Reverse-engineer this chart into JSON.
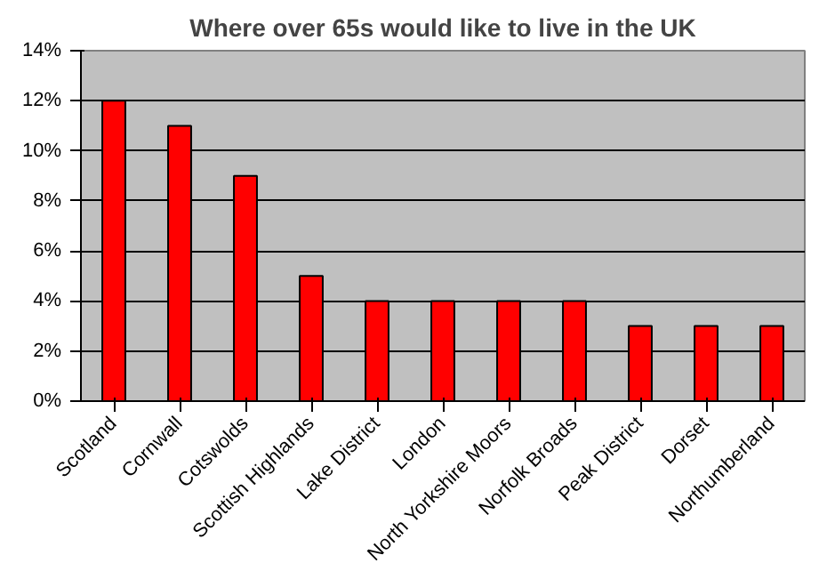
{
  "chart_data": {
    "type": "bar",
    "title": "Where over 65s would like to live in the UK",
    "categories": [
      "Scotland",
      "Cornwall",
      "Cotswolds",
      "Scottish Highlands",
      "Lake District",
      "London",
      "North Yorkshire Moors",
      "Norfolk Broads",
      "Peak District",
      "Dorset",
      "Northumberland"
    ],
    "values": [
      12,
      11,
      9,
      5,
      4,
      4,
      4,
      4,
      3,
      3,
      3
    ],
    "color": "#ff0000",
    "ylim": [
      0,
      14
    ],
    "yticks": [
      {
        "value": 0,
        "label": "0%"
      },
      {
        "value": 2,
        "label": "2%"
      },
      {
        "value": 4,
        "label": "4%"
      },
      {
        "value": 6,
        "label": "6%"
      },
      {
        "value": 8,
        "label": "8%"
      },
      {
        "value": 10,
        "label": "10%"
      },
      {
        "value": 12,
        "label": "12%"
      },
      {
        "value": 14,
        "label": "14%"
      }
    ],
    "grid": "y"
  }
}
